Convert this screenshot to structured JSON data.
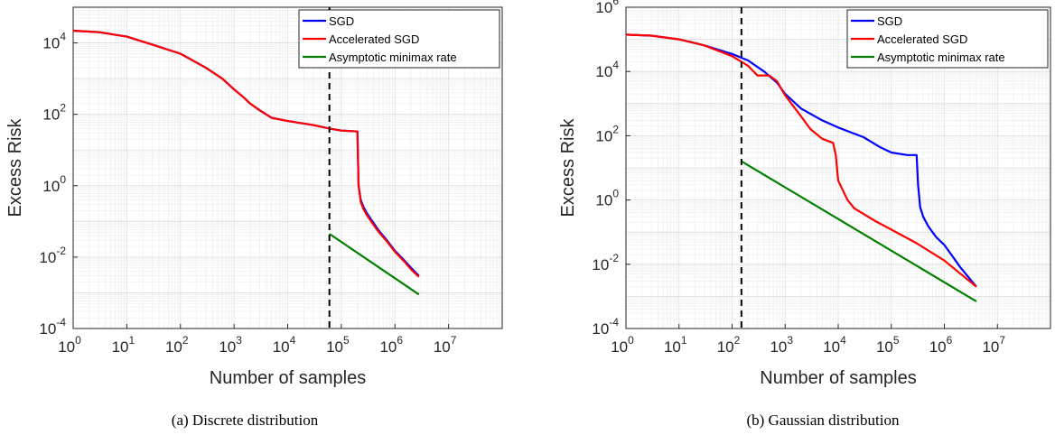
{
  "chart_data": [
    {
      "type": "line",
      "caption": "(a) Discrete distribution",
      "xlabel": "Number of samples",
      "ylabel": "Excess Risk",
      "x_scale": "log",
      "y_scale": "log",
      "xlim": [
        1,
        100000000
      ],
      "ylim": [
        0.0001,
        100000
      ],
      "x_ticks": [
        1,
        10,
        100,
        1000,
        10000,
        100000,
        1000000,
        10000000
      ],
      "y_ticks": [
        0.0001,
        0.01,
        1,
        100,
        10000
      ],
      "grid": true,
      "legend_position": "top-right",
      "vline_x": 60000,
      "series": [
        {
          "name": "SGD",
          "color": "#0000ff",
          "x": [
            1,
            3,
            10,
            30,
            100,
            300,
            600,
            1000,
            1500,
            2000,
            3000,
            5000,
            10000,
            30000,
            60000,
            100000,
            150000,
            200000,
            210000,
            230000,
            260000,
            300000,
            400000,
            500000,
            700000,
            1000000,
            1500000,
            2000000,
            2800000
          ],
          "y": [
            22000,
            20000,
            15000,
            9000,
            5000,
            2000,
            1000,
            500,
            300,
            200,
            130,
            80,
            65,
            50,
            40,
            35,
            34,
            33,
            1,
            0.4,
            0.25,
            0.17,
            0.09,
            0.055,
            0.03,
            0.015,
            0.008,
            0.005,
            0.003
          ]
        },
        {
          "name": "Accelerated SGD",
          "color": "#ff0000",
          "x": [
            1,
            3,
            10,
            30,
            100,
            300,
            600,
            1000,
            1500,
            2000,
            3000,
            5000,
            10000,
            30000,
            60000,
            100000,
            150000,
            200000,
            210000,
            230000,
            260000,
            300000,
            400000,
            500000,
            700000,
            1000000,
            1500000,
            2000000,
            2800000
          ],
          "y": [
            22000,
            20000,
            15000,
            9000,
            5000,
            2000,
            1000,
            500,
            300,
            200,
            130,
            80,
            65,
            50,
            40,
            35,
            34,
            33,
            1,
            0.35,
            0.22,
            0.15,
            0.08,
            0.05,
            0.028,
            0.014,
            0.0075,
            0.0045,
            0.0028
          ]
        },
        {
          "name": "Asymptotic minimax rate",
          "color": "#008000",
          "x": [
            60000,
            2800000
          ],
          "y": [
            0.045,
            0.0009
          ]
        }
      ]
    },
    {
      "type": "line",
      "caption": "(b) Gaussian distribution",
      "xlabel": "Number of samples",
      "ylabel": "Excess Risk",
      "x_scale": "log",
      "y_scale": "log",
      "xlim": [
        1,
        100000000
      ],
      "ylim": [
        0.0001,
        1000000
      ],
      "x_ticks": [
        1,
        10,
        100,
        1000,
        10000,
        100000,
        1000000,
        10000000
      ],
      "y_ticks": [
        0.0001,
        0.01,
        1,
        100,
        10000,
        1000000
      ],
      "grid": true,
      "legend_position": "top-right",
      "vline_x": 150,
      "series": [
        {
          "name": "SGD",
          "color": "#0000ff",
          "x": [
            1,
            3,
            10,
            30,
            100,
            200,
            400,
            700,
            1000,
            2000,
            5000,
            10000,
            30000,
            60000,
            100000,
            200000,
            300000,
            320000,
            350000,
            400000,
            500000,
            700000,
            1000000,
            2000000,
            4000000
          ],
          "y": [
            140000,
            130000,
            100000,
            65000,
            35000,
            22000,
            10000,
            4500,
            2000,
            700,
            300,
            180,
            90,
            45,
            30,
            25,
            25,
            3,
            0.6,
            0.3,
            0.15,
            0.07,
            0.04,
            0.008,
            0.002
          ]
        },
        {
          "name": "Accelerated SGD",
          "color": "#ff0000",
          "x": [
            1,
            3,
            10,
            30,
            100,
            200,
            300,
            500,
            700,
            1000,
            2000,
            3000,
            5000,
            8000,
            9000,
            10000,
            15000,
            20000,
            50000,
            100000,
            300000,
            1000000,
            4000000
          ],
          "y": [
            140000,
            130000,
            100000,
            65000,
            30000,
            15000,
            7500,
            7500,
            5000,
            1800,
            400,
            160,
            80,
            60,
            25,
            4,
            1,
            0.55,
            0.22,
            0.12,
            0.045,
            0.013,
            0.002
          ]
        },
        {
          "name": "Asymptotic minimax rate",
          "color": "#008000",
          "x": [
            150,
            4000000
          ],
          "y": [
            16,
            0.0007
          ]
        }
      ]
    }
  ]
}
